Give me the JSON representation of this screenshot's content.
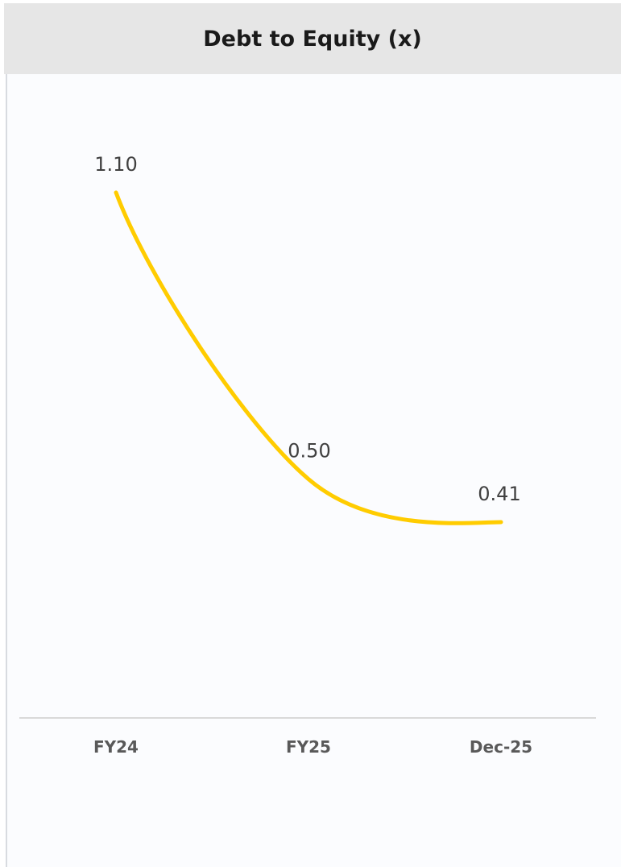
{
  "header": {
    "title": "Debt to Equity (x)"
  },
  "colors": {
    "line": "#FFCC00",
    "header_bg": "#e6e6e6",
    "axis": "#d9d9d9"
  },
  "chart_data": {
    "type": "line",
    "title": "Debt to Equity (x)",
    "categories": [
      "FY24",
      "FY25",
      "Dec-25"
    ],
    "series": [
      {
        "values": [
          1.1,
          0.5,
          0.41
        ],
        "labels": [
          "1.10",
          "0.50",
          "0.41"
        ]
      }
    ],
    "ylim": [
      0,
      1.25
    ],
    "smooth": true,
    "grid": false,
    "legend": "none"
  }
}
